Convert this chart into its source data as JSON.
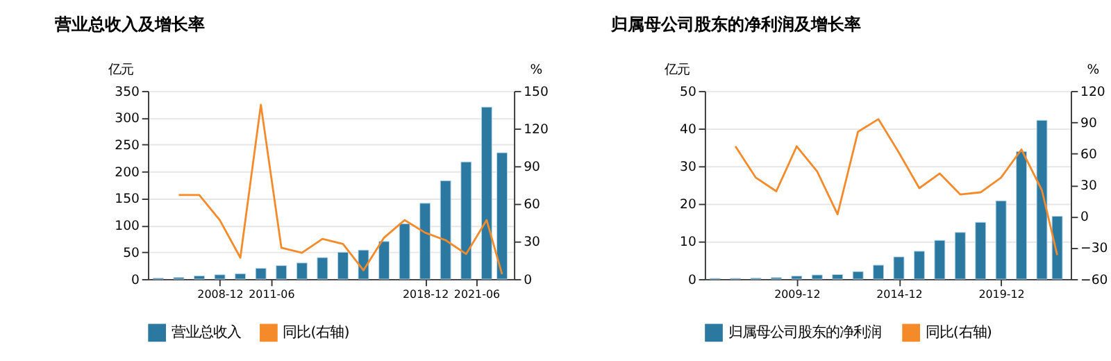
{
  "chart_data": [
    {
      "type": "bar",
      "title": "营业总收入及增长率",
      "ylabel": "亿元",
      "y2label": "%",
      "x": [
        "2005-12",
        "2006-12",
        "2007-12",
        "2008-12",
        "2009-12",
        "2010-12",
        "2011-12",
        "2012-12",
        "2013-12",
        "2014-12",
        "2015-12",
        "2016-12",
        "2017-12",
        "2018-12",
        "2019-12",
        "2020-12",
        "2021-12",
        "2022-09"
      ],
      "xlim": [
        "2005-06",
        "2023-04"
      ],
      "xticks": [
        {
          "value": "2008-12",
          "label": "2008-12"
        },
        {
          "value": "2011-06",
          "label": "2011-06"
        },
        {
          "value": "2018-12",
          "label": "2018-12"
        },
        {
          "value": "2021-06",
          "label": "2021-06"
        }
      ],
      "ylim": [
        0,
        350
      ],
      "yticks": [
        0,
        50,
        100,
        150,
        200,
        250,
        300,
        350
      ],
      "y2lim": [
        0,
        150
      ],
      "y2ticks": [
        0,
        30,
        60,
        90,
        120,
        150
      ],
      "grid": "y",
      "legend": "bottom",
      "series": [
        {
          "name": "营业总收入",
          "color": "#2b78a0",
          "values": [
            2,
            3,
            6,
            8,
            10,
            20,
            25,
            30,
            40,
            50,
            54,
            70,
            103,
            141,
            183,
            218,
            320,
            235
          ]
        },
        {
          "name": "同比(右轴)",
          "type": "line",
          "axis": "y2",
          "color": "#f58a2a",
          "values": [
            null,
            67,
            67,
            47,
            17,
            139,
            25,
            21,
            32,
            28,
            7,
            33,
            47,
            37,
            31,
            20,
            47,
            4
          ]
        }
      ]
    },
    {
      "type": "bar",
      "title": "归属母公司股东的净利润及增长率",
      "ylabel": "亿元",
      "y2label": "%",
      "x": [
        "2005-12",
        "2006-12",
        "2007-12",
        "2008-12",
        "2009-12",
        "2010-12",
        "2011-12",
        "2012-12",
        "2013-12",
        "2014-12",
        "2015-12",
        "2016-12",
        "2017-12",
        "2018-12",
        "2019-12",
        "2020-12",
        "2021-12",
        "2022-09"
      ],
      "xlim": [
        "2005-06",
        "2023-05"
      ],
      "xticks": [
        {
          "value": "2009-12",
          "label": "2009-12"
        },
        {
          "value": "2014-12",
          "label": "2014-12"
        },
        {
          "value": "2019-12",
          "label": "2019-12"
        }
      ],
      "ylim": [
        0,
        50
      ],
      "yticks": [
        0,
        10,
        20,
        30,
        40,
        50
      ],
      "y2lim": [
        -60,
        120
      ],
      "y2ticks": [
        -60,
        -30,
        0,
        30,
        60,
        90,
        120
      ],
      "grid": "y",
      "legend": "bottom",
      "series": [
        {
          "name": "归属母公司股东的净利润",
          "color": "#2b78a0",
          "values": [
            0.2,
            0.2,
            0.3,
            0.4,
            0.8,
            1.1,
            1.2,
            2,
            3.7,
            5.9,
            7.4,
            10.3,
            12.4,
            15.1,
            20.8,
            33.9,
            42.2,
            16.7
          ]
        },
        {
          "name": "同比(右轴)",
          "type": "line",
          "axis": "y2",
          "color": "#f58a2a",
          "values": [
            null,
            67,
            37,
            24,
            67,
            43,
            2,
            81,
            93,
            61,
            27,
            41,
            21,
            23,
            37,
            64,
            25,
            -37
          ]
        }
      ]
    }
  ]
}
